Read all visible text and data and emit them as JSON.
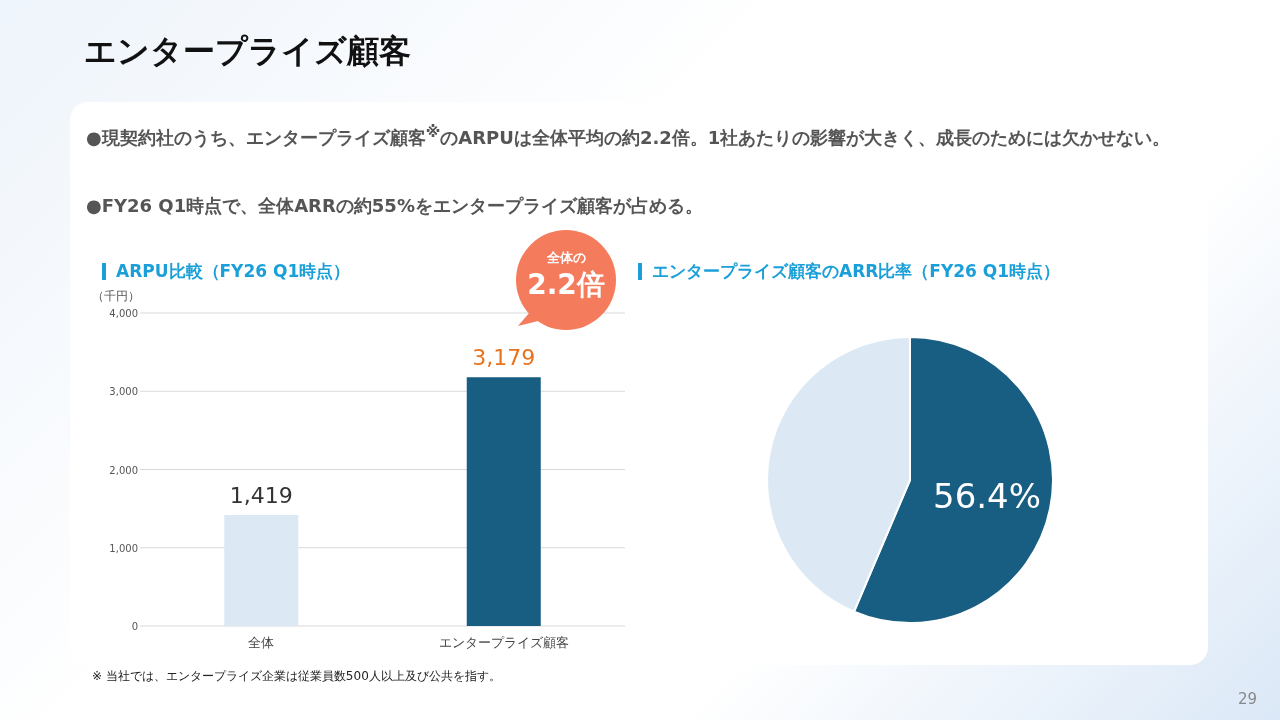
{
  "chart_data": [
    {
      "type": "bar",
      "title": "ARPU比較（FY26 Q1時点）",
      "ylabel": "（千円）",
      "categories": [
        "全体",
        "エンタープライズ顧客"
      ],
      "values": [
        1419,
        3179
      ],
      "colors": [
        "#dce9f5",
        "#175e82"
      ],
      "ylim": [
        0,
        4000
      ],
      "yticks": [
        {
          "value": 0,
          "label": "0"
        },
        {
          "value": 1000,
          "label": "1,000"
        },
        {
          "value": 2000,
          "label": "2,000"
        },
        {
          "value": 3000,
          "label": "3,000"
        },
        {
          "value": 4000,
          "label": "4,000"
        }
      ],
      "value_labels": [
        "1,419",
        "3,179"
      ],
      "grid": "y",
      "annotations": [
        "エンタープライズ顧客",
        "●現契約社のうち、エンタープライズ顧客$^{※}$のARPUは全体平均の約2.2倍。1社あたりの影響が大きく、成長のためには欠かせない。",
        "●FY26 Q1時点で、全体ARRの約55%をエンタープライズ顧客が占める。",
        "全体の",
        "2.2倍",
        "※ 当社では、エンタープライズ企業は従業員数500人以上及び公共を指す。",
        "29"
      ]
    },
    {
      "type": "pie",
      "title": "エンタープライズ顧客のARR比率（FY26 Q1時点）",
      "categories": [
        null,
        null
      ],
      "values": [
        56.4,
        43.6
      ],
      "colors": [
        "#175e82",
        "#dce9f5"
      ],
      "value_labels": [
        "56.4%",
        null
      ]
    }
  ]
}
